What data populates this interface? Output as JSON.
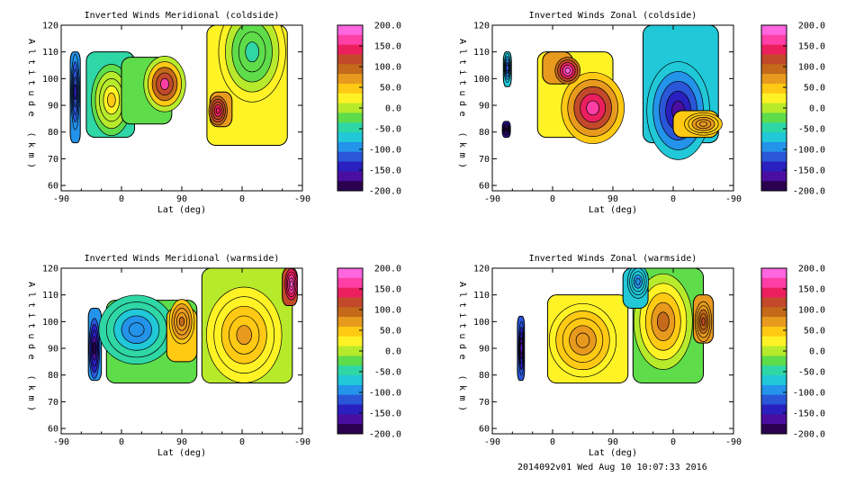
{
  "footer": "2014092v01 Wed Aug 10 10:07:33 2016",
  "colorbar": {
    "ticks": [
      "200.0",
      "150.0",
      "100.0",
      "50.0",
      "0.0",
      "-50.0",
      "-100.0",
      "-150.0",
      "-200.0"
    ],
    "colors": [
      "#ff66e0",
      "#ff3fa6",
      "#ec1f5e",
      "#c2492a",
      "#c46a1a",
      "#e89a1e",
      "#ffc914",
      "#fff326",
      "#b8ea2c",
      "#5fdc4a",
      "#2fd6a6",
      "#20c8d8",
      "#2493ea",
      "#2a56d8",
      "#2a1fbf",
      "#4a0fa0",
      "#2b004f"
    ]
  },
  "chart_data": [
    {
      "type": "heatmap",
      "title": "Inverted Winds Meridional (coldside)",
      "xlabel": "Lat (deg)",
      "ylabel": "Altitude (km)",
      "xticks": [
        "-90",
        "0",
        "90",
        "0",
        "-90"
      ],
      "yticks": [
        "60",
        "70",
        "80",
        "90",
        "100",
        "110",
        "120"
      ],
      "ylim": [
        58,
        120
      ],
      "zlim": [
        -200,
        200
      ],
      "blobs": [
        {
          "xrange": [
            -81,
            -71
          ],
          "yrange": [
            76,
            110
          ],
          "v": -90,
          "cx": -76,
          "cy": 95,
          "peak": -130
        },
        {
          "xrange": [
            -65,
            -17
          ],
          "yrange": [
            78,
            110
          ],
          "v": -40,
          "cx": -40,
          "cy": 92,
          "peak": 40
        },
        {
          "xrange": [
            -30,
            20
          ],
          "yrange": [
            83,
            108
          ],
          "v": -30,
          "cx": 13,
          "cy": 98,
          "peak": 160
        },
        {
          "xrange": [
            55,
            135
          ],
          "yrange": [
            75,
            120
          ],
          "v": 30,
          "cx": 100,
          "cy": 110,
          "peak": -40
        },
        {
          "xrange": [
            58,
            80
          ],
          "yrange": [
            82,
            95
          ],
          "v": 80,
          "cx": 66,
          "cy": 88,
          "peak": 150
        }
      ]
    },
    {
      "type": "heatmap",
      "title": "Inverted Winds Zonal (coldside)",
      "xlabel": "Lat (deg)",
      "ylabel": "Altitude (km)",
      "xticks": [
        "-90",
        "0",
        "90",
        "0",
        "-90"
      ],
      "yticks": [
        "60",
        "70",
        "80",
        "90",
        "100",
        "110",
        "120"
      ],
      "ylim": [
        58,
        120
      ],
      "zlim": [
        -200,
        200
      ],
      "blobs": [
        {
          "xrange": [
            -79,
            -71
          ],
          "yrange": [
            97,
            110
          ],
          "v": -60,
          "cx": -75,
          "cy": 104,
          "peak": -120
        },
        {
          "xrange": [
            -80,
            -72
          ],
          "yrange": [
            78,
            84
          ],
          "v": -150,
          "cx": -76,
          "cy": 81,
          "peak": -180
        },
        {
          "xrange": [
            -45,
            30
          ],
          "yrange": [
            78,
            110
          ],
          "v": 20,
          "cx": 10,
          "cy": 89,
          "peak": 170
        },
        {
          "xrange": [
            -40,
            -10
          ],
          "yrange": [
            98,
            110
          ],
          "v": 60,
          "cx": -15,
          "cy": 103,
          "peak": 180
        },
        {
          "xrange": [
            60,
            135
          ],
          "yrange": [
            76,
            120
          ],
          "v": -60,
          "cx": 95,
          "cy": 88,
          "peak": -160
        },
        {
          "xrange": [
            90,
            135
          ],
          "yrange": [
            78,
            88
          ],
          "v": 40,
          "cx": 120,
          "cy": 83,
          "peak": 80
        }
      ]
    },
    {
      "type": "heatmap",
      "title": "Inverted Winds Meridional (warmside)",
      "xlabel": "Lat (deg)",
      "ylabel": "Altitude (km)",
      "xticks": [
        "-90",
        "0",
        "90",
        "0",
        "-90"
      ],
      "yticks": [
        "60",
        "70",
        "80",
        "90",
        "100",
        "110",
        "120"
      ],
      "ylim": [
        58,
        120
      ],
      "zlim": [
        -200,
        200
      ],
      "blobs": [
        {
          "xrange": [
            -63,
            -50
          ],
          "yrange": [
            78,
            105
          ],
          "v": -100,
          "cx": -57,
          "cy": 90,
          "peak": -180
        },
        {
          "xrange": [
            -45,
            45
          ],
          "yrange": [
            77,
            108
          ],
          "v": -20,
          "cx": -15,
          "cy": 97,
          "peak": -100
        },
        {
          "xrange": [
            15,
            45
          ],
          "yrange": [
            85,
            105
          ],
          "v": 50,
          "cx": 30,
          "cy": 100,
          "peak": 90
        },
        {
          "xrange": [
            50,
            140
          ],
          "yrange": [
            77,
            120
          ],
          "v": 10,
          "cx": 92,
          "cy": 95,
          "peak": 60
        },
        {
          "xrange": [
            130,
            145
          ],
          "yrange": [
            106,
            120
          ],
          "v": 120,
          "cx": 139,
          "cy": 114,
          "peak": 190
        }
      ]
    },
    {
      "type": "heatmap",
      "title": "Inverted Winds Zonal (warmside)",
      "xlabel": "Lat (deg)",
      "ylabel": "Altitude (km)",
      "xticks": [
        "-90",
        "0",
        "90",
        "0",
        "-90"
      ],
      "yticks": [
        "60",
        "70",
        "80",
        "90",
        "100",
        "110",
        "120"
      ],
      "ylim": [
        58,
        120
      ],
      "zlim": [
        -200,
        200
      ],
      "blobs": [
        {
          "xrange": [
            -65,
            -58
          ],
          "yrange": [
            78,
            102
          ],
          "v": -110,
          "cx": -61,
          "cy": 90,
          "peak": -170
        },
        {
          "xrange": [
            -35,
            45
          ],
          "yrange": [
            77,
            110
          ],
          "v": 20,
          "cx": 0,
          "cy": 93,
          "peak": 80
        },
        {
          "xrange": [
            50,
            120
          ],
          "yrange": [
            77,
            120
          ],
          "v": -20,
          "cx": 80,
          "cy": 100,
          "peak": 100
        },
        {
          "xrange": [
            40,
            65
          ],
          "yrange": [
            105,
            120
          ],
          "v": -60,
          "cx": 55,
          "cy": 115,
          "peak": -90
        },
        {
          "xrange": [
            110,
            130
          ],
          "yrange": [
            92,
            110
          ],
          "v": 60,
          "cx": 120,
          "cy": 100,
          "peak": 110
        }
      ]
    }
  ]
}
